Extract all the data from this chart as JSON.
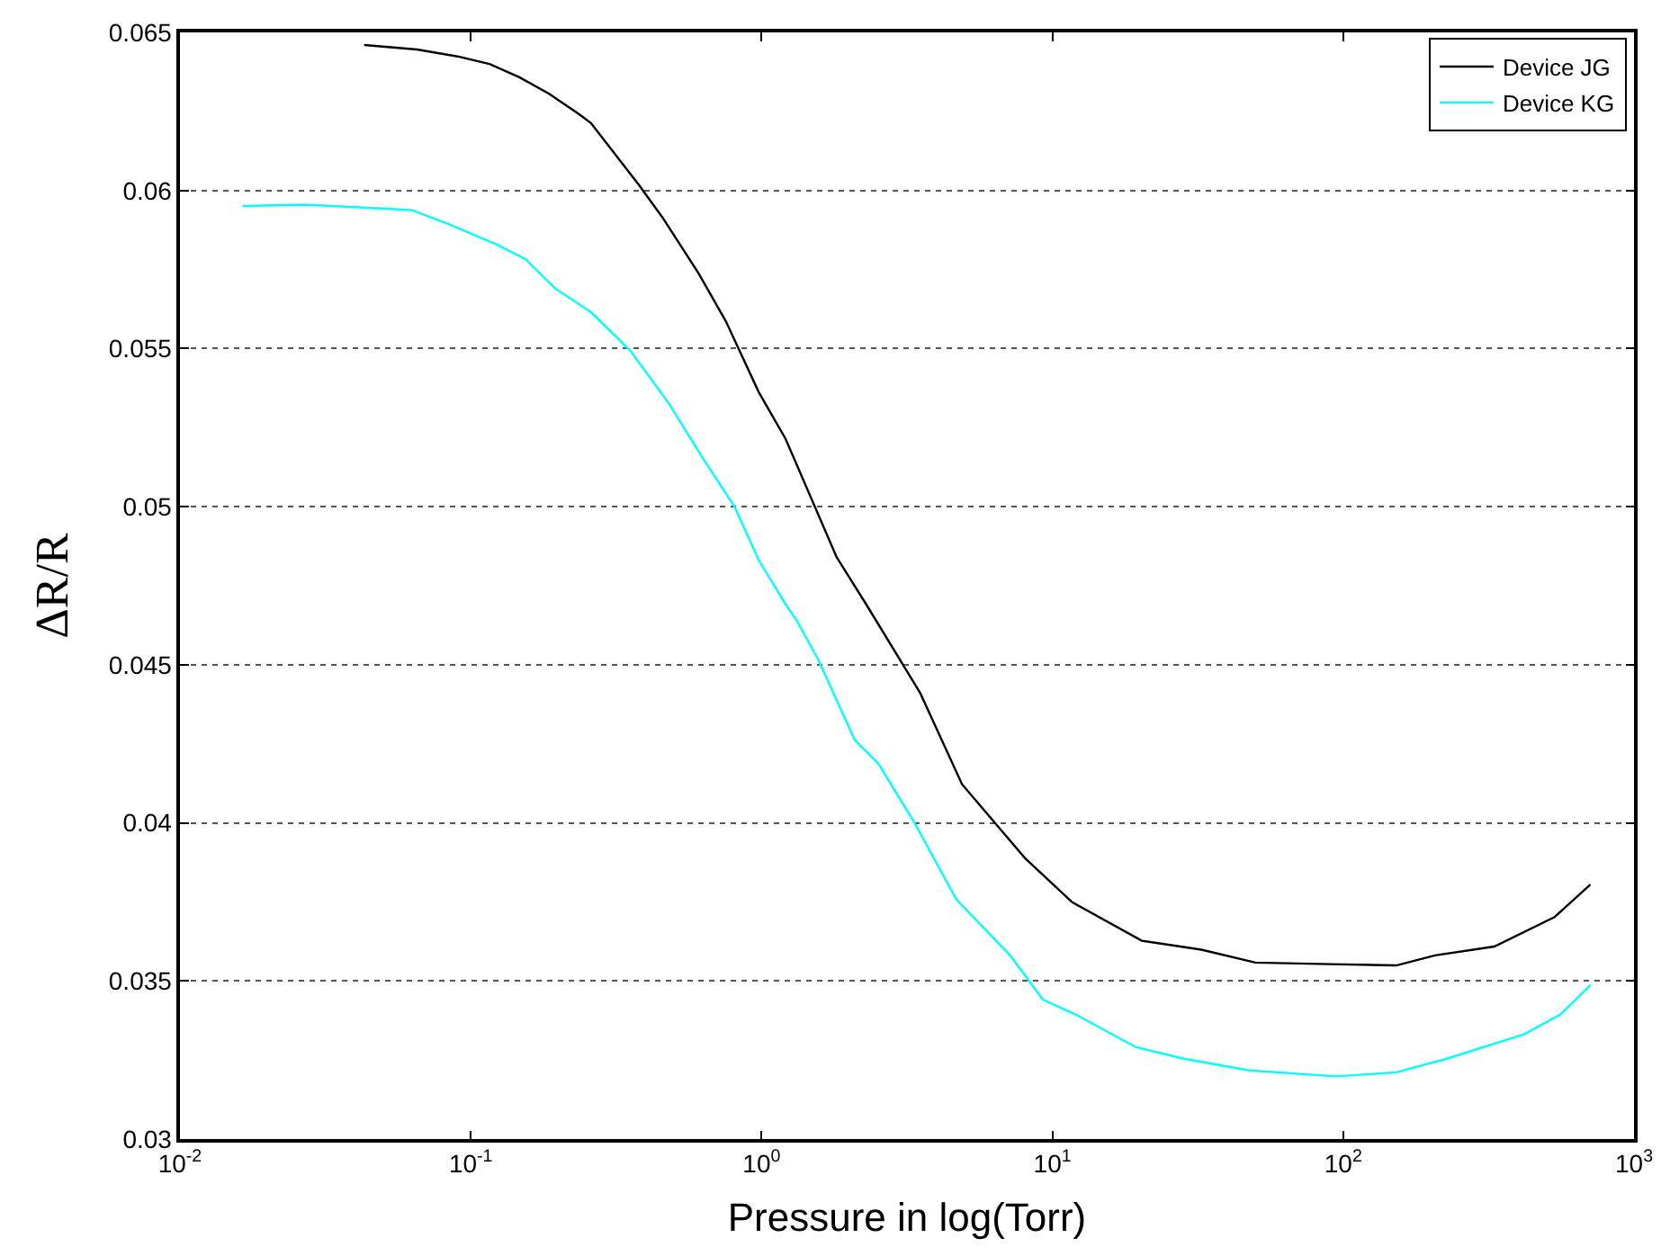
{
  "chart_data": {
    "type": "line",
    "xlabel": "Pressure in log(Torr)",
    "ylabel": "ΔR/R",
    "log": "x",
    "grid": "y",
    "legend": "top right",
    "line_style": "solid",
    "marker": "none",
    "xlim": [
      0.01,
      1000
    ],
    "xticks": [
      {
        "value": 0.01,
        "label": "10$^{-2}$"
      },
      {
        "value": 0.1,
        "label": "10$^{-1}$"
      },
      {
        "value": 1,
        "label": "10$^{0}$"
      },
      {
        "value": 10,
        "label": "10$^{1}$"
      },
      {
        "value": 100,
        "label": "10$^{2}$"
      },
      {
        "value": 1000,
        "label": "10$^{3}$"
      }
    ],
    "ylim": [
      0.03,
      0.065
    ],
    "yticks": [
      0.03,
      0.035,
      0.04,
      0.045,
      0.05,
      0.055,
      0.06,
      0.065
    ],
    "series": [
      {
        "name": "Device JG",
        "color": "#000000",
        "x": [
          0.043,
          0.0653,
          0.0914,
          0.116,
          0.147,
          0.186,
          0.236,
          0.259,
          0.379,
          0.457,
          0.608,
          0.753,
          0.977,
          1.21,
          1.81,
          2.29,
          3.51,
          4.89,
          8.04,
          11.7,
          20.3,
          32.5,
          49.9,
          90.2,
          152,
          207,
          331,
          533,
          708
        ],
        "values": [
          0.0646,
          0.06446,
          0.06423,
          0.064,
          0.06358,
          0.06306,
          0.06241,
          0.06213,
          0.06017,
          0.05914,
          0.05737,
          0.05587,
          0.05363,
          0.05214,
          0.04841,
          0.04691,
          0.04411,
          0.04122,
          0.03889,
          0.03749,
          0.03627,
          0.03599,
          0.03558,
          0.03553,
          0.03549,
          0.03581,
          0.03609,
          0.03702,
          0.03805
        ]
      },
      {
        "name": "Device KG",
        "color": "#00ffff",
        "x": [
          0.0164,
          0.0267,
          0.0428,
          0.0625,
          0.0831,
          0.122,
          0.154,
          0.195,
          0.259,
          0.353,
          0.48,
          0.623,
          0.807,
          0.977,
          1.21,
          1.33,
          1.57,
          2.09,
          2.52,
          3.35,
          4.67,
          7.15,
          9.27,
          12.0,
          19.3,
          28.3,
          47.5,
          94.5,
          152,
          227,
          420,
          558,
          708
        ],
        "values": [
          0.05951,
          0.05955,
          0.05946,
          0.05938,
          0.05895,
          0.0583,
          0.05783,
          0.0569,
          0.05615,
          0.05494,
          0.05326,
          0.05158,
          0.05,
          0.04831,
          0.04691,
          0.04635,
          0.04514,
          0.04262,
          0.04187,
          0.04001,
          0.03758,
          0.03581,
          0.03441,
          0.03394,
          0.03291,
          0.03254,
          0.03217,
          0.03198,
          0.03211,
          0.03254,
          0.03332,
          0.03394,
          0.03487
        ]
      }
    ]
  }
}
